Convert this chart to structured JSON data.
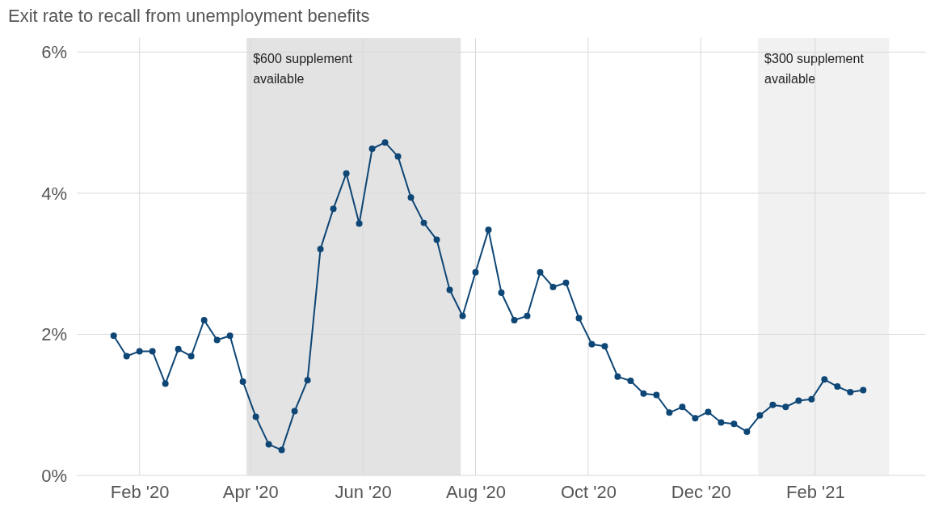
{
  "chart_data": {
    "type": "line",
    "title": "Exit rate to recall from unemployment benefits",
    "x": [
      "2020-01-18",
      "2020-01-25",
      "2020-02-01",
      "2020-02-08",
      "2020-02-15",
      "2020-02-22",
      "2020-02-29",
      "2020-03-07",
      "2020-03-14",
      "2020-03-21",
      "2020-03-28",
      "2020-04-04",
      "2020-04-11",
      "2020-04-18",
      "2020-04-25",
      "2020-05-02",
      "2020-05-09",
      "2020-05-16",
      "2020-05-23",
      "2020-05-30",
      "2020-06-06",
      "2020-06-13",
      "2020-06-20",
      "2020-06-27",
      "2020-07-04",
      "2020-07-11",
      "2020-07-18",
      "2020-07-25",
      "2020-08-01",
      "2020-08-08",
      "2020-08-15",
      "2020-08-22",
      "2020-08-29",
      "2020-09-05",
      "2020-09-12",
      "2020-09-19",
      "2020-09-26",
      "2020-10-03",
      "2020-10-10",
      "2020-10-17",
      "2020-10-24",
      "2020-10-31",
      "2020-11-07",
      "2020-11-14",
      "2020-11-21",
      "2020-11-28",
      "2020-12-05",
      "2020-12-12",
      "2020-12-19",
      "2020-12-26",
      "2021-01-02",
      "2021-01-09",
      "2021-01-16",
      "2021-01-23",
      "2021-01-30",
      "2021-02-06",
      "2021-02-13",
      "2021-02-20",
      "2021-02-27"
    ],
    "series": [
      {
        "color": "#0e4675",
        "values": [
          1.98,
          1.69,
          1.76,
          1.76,
          1.3,
          1.79,
          1.69,
          2.2,
          1.92,
          1.98,
          1.33,
          0.83,
          0.44,
          0.36,
          0.91,
          1.35,
          3.21,
          3.78,
          4.28,
          3.57,
          4.63,
          4.72,
          4.52,
          3.94,
          3.58,
          3.34,
          2.63,
          2.26,
          2.88,
          3.48,
          2.59,
          2.2,
          2.26,
          2.88,
          2.67,
          2.73,
          2.23,
          1.86,
          1.83,
          1.4,
          1.34,
          1.16,
          1.14,
          0.89,
          0.97,
          0.81,
          0.9,
          0.75,
          0.73,
          0.62,
          0.85,
          1.0,
          0.97,
          1.06,
          1.08,
          1.36,
          1.26,
          1.18,
          1.21
        ]
      }
    ],
    "xlim": [
      "2019-12-29",
      "2021-04-02"
    ],
    "xticks": [
      {
        "value": "2020-02-01",
        "label": "Feb '20"
      },
      {
        "value": "2020-04-01",
        "label": "Apr '20"
      },
      {
        "value": "2020-06-01",
        "label": "Jun '20"
      },
      {
        "value": "2020-08-01",
        "label": "Aug '20"
      },
      {
        "value": "2020-10-01",
        "label": "Oct '20"
      },
      {
        "value": "2020-12-01",
        "label": "Dec '20"
      },
      {
        "value": "2021-02-01",
        "label": "Feb '21"
      }
    ],
    "ylim": [
      0,
      6.2
    ],
    "yticks": [
      {
        "value": 0,
        "label": "0%"
      },
      {
        "value": 2,
        "label": "2%"
      },
      {
        "value": 4,
        "label": "4%"
      },
      {
        "value": 6,
        "label": "6%"
      }
    ],
    "bands": [
      {
        "axis": "x",
        "from": "2020-03-30",
        "to": "2020-07-24",
        "label": "$600 supplement available",
        "color": "#e3e3e3"
      },
      {
        "axis": "x",
        "from": "2021-01-01",
        "to": "2021-03-13",
        "label": "$300 supplement available",
        "color": "#f1f1f1"
      }
    ],
    "grid": true,
    "marker": "circle",
    "line_style": "solid"
  }
}
